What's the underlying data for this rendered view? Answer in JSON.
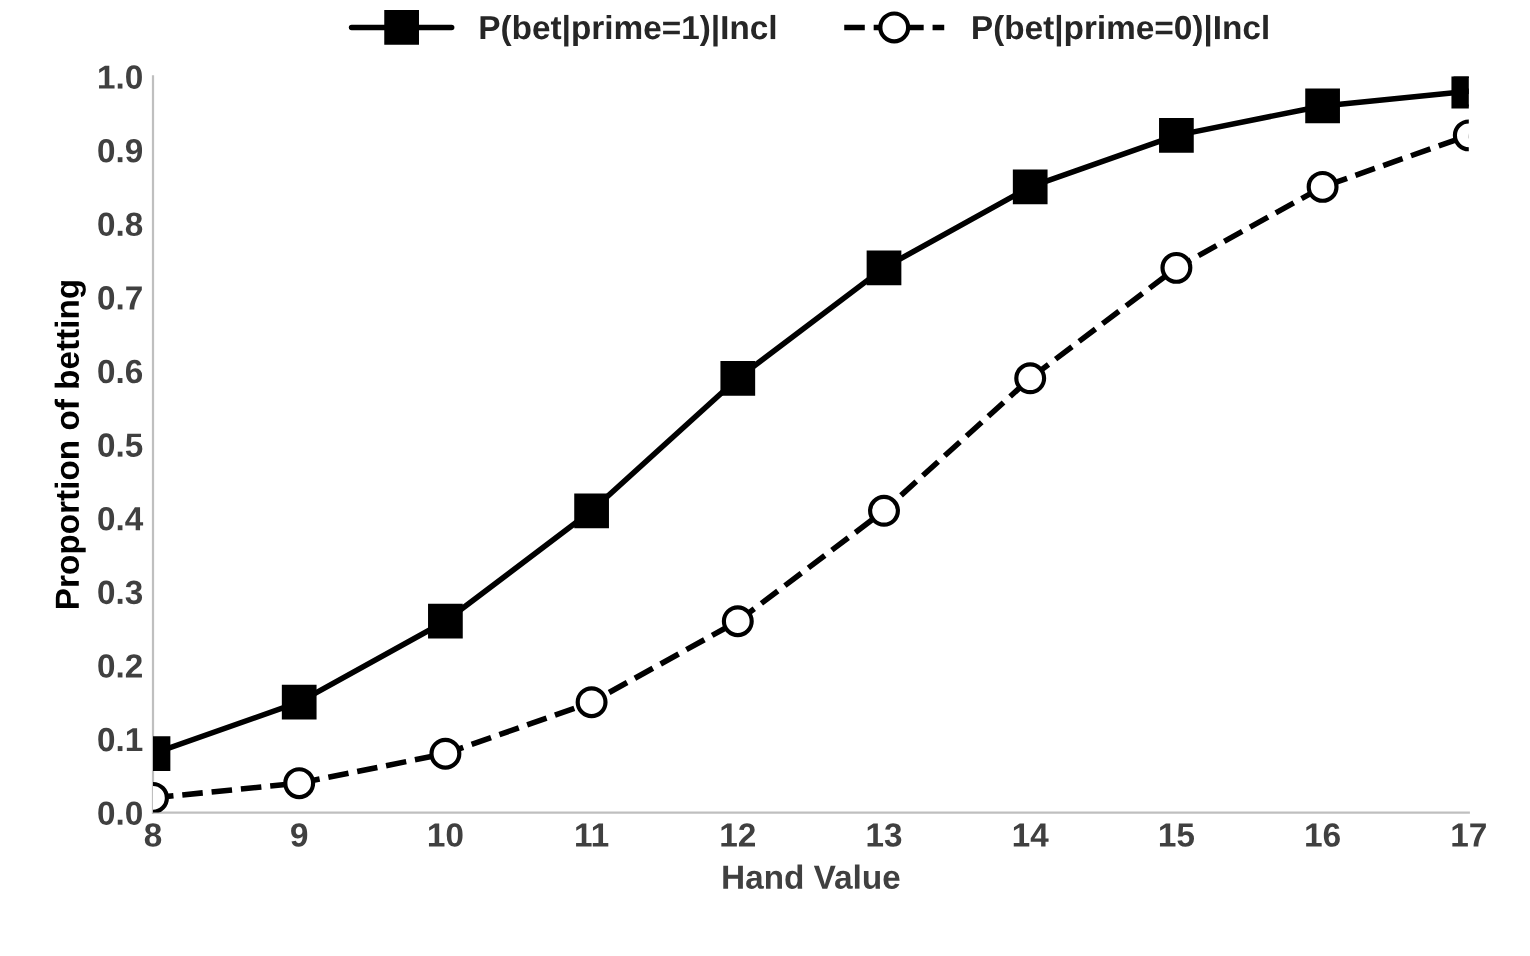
{
  "chart_data": {
    "type": "line",
    "xlabel": "Hand Value",
    "ylabel": "Proportion of betting",
    "x": [
      8,
      9,
      10,
      11,
      12,
      13,
      14,
      15,
      16,
      17
    ],
    "series": [
      {
        "name": "P(bet|prime=1)|Incl",
        "color": "#000000",
        "marker": "square",
        "line_style": "solid",
        "values": [
          0.08,
          0.15,
          0.26,
          0.41,
          0.59,
          0.74,
          0.85,
          0.92,
          0.96,
          0.98
        ]
      },
      {
        "name": "P(bet|prime=0)|Incl",
        "color": "#000000",
        "marker": "circle",
        "line_style": "dashed",
        "values": [
          0.02,
          0.04,
          0.08,
          0.15,
          0.26,
          0.41,
          0.59,
          0.74,
          0.85,
          0.92
        ]
      }
    ],
    "xlim": [
      8,
      17
    ],
    "xticks": [
      8,
      9,
      10,
      11,
      12,
      13,
      14,
      15,
      16,
      17
    ],
    "ylim": [
      0,
      1
    ],
    "yticks": [
      {
        "value": 0,
        "label": "0.0"
      },
      {
        "value": 0.1,
        "label": "0.1"
      },
      {
        "value": 0.2,
        "label": "0.2"
      },
      {
        "value": 0.3,
        "label": "0.3"
      },
      {
        "value": 0.4,
        "label": "0.4"
      },
      {
        "value": 0.5,
        "label": "0.5"
      },
      {
        "value": 0.6,
        "label": "0.6"
      },
      {
        "value": 0.7,
        "label": "0.7"
      },
      {
        "value": 0.8,
        "label": "0.8"
      },
      {
        "value": 0.9,
        "label": "0.9"
      },
      {
        "value": 1,
        "label": "1.0"
      }
    ],
    "grid": false,
    "legend": "top"
  }
}
